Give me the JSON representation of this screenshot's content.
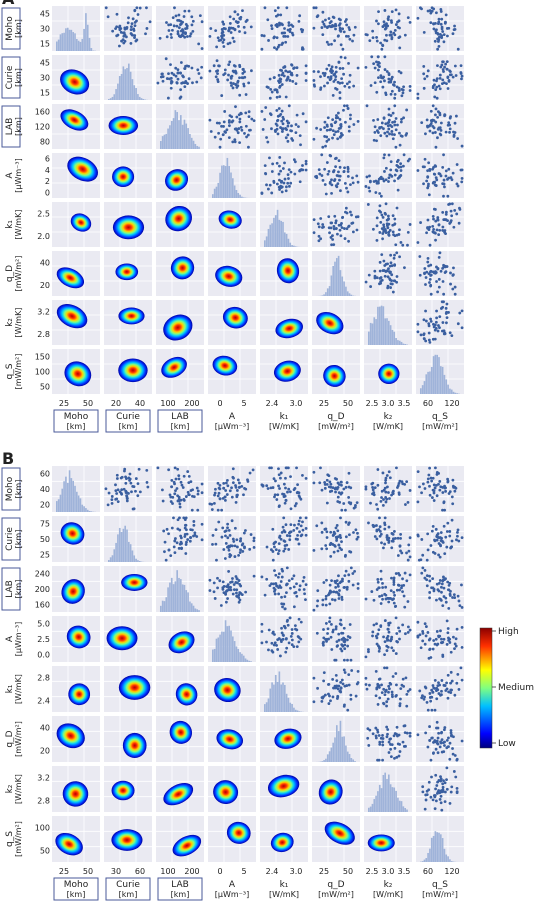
{
  "panels": {
    "A": {
      "label": "A",
      "variables": [
        {
          "name": "Moho",
          "unit": "[km]",
          "ticks": [
            "15",
            "30",
            "45"
          ],
          "xticks": [
            "25",
            "50"
          ]
        },
        {
          "name": "Curie",
          "unit": "[km]",
          "ticks": [
            "15",
            "30",
            "45"
          ],
          "xticks": [
            "20",
            "40"
          ]
        },
        {
          "name": "LAB",
          "unit": "[km]",
          "ticks": [
            "80",
            "120",
            "160"
          ],
          "xticks": [
            "100",
            "200"
          ]
        },
        {
          "name": "A",
          "unit": "[μWm⁻³]",
          "ticks": [
            "0",
            "2",
            "4",
            "6"
          ],
          "xticks": [
            "0",
            "5"
          ]
        },
        {
          "name": "k₁",
          "unit": "[W/mK]",
          "ticks": [
            "2.0",
            "2.5"
          ],
          "xticks": [
            "2.4",
            "3.0"
          ]
        },
        {
          "name": "q_D",
          "unit": "[mW/m²]",
          "ticks": [
            "20",
            "40"
          ],
          "xticks": [
            "25",
            "50"
          ]
        },
        {
          "name": "k₂",
          "unit": "[W/mK]",
          "ticks": [
            "2.8",
            "3.2"
          ],
          "xticks": [
            "2.5",
            "3.0",
            "3.5"
          ]
        },
        {
          "name": "q_S",
          "unit": "[mW/m²]",
          "ticks": [
            "50",
            "100",
            "150"
          ],
          "xticks": [
            "60",
            "120"
          ]
        }
      ]
    },
    "B": {
      "label": "B",
      "variables": [
        {
          "name": "Moho",
          "unit": "[km]",
          "ticks": [
            "20",
            "40",
            "60"
          ],
          "xticks": [
            "25",
            "50"
          ]
        },
        {
          "name": "Curie",
          "unit": "[km]",
          "ticks": [
            "25",
            "50",
            "75"
          ],
          "xticks": [
            "30",
            "60"
          ]
        },
        {
          "name": "LAB",
          "unit": "[km]",
          "ticks": [
            "160",
            "200",
            "240"
          ],
          "xticks": [
            "100",
            "200"
          ]
        },
        {
          "name": "A",
          "unit": "[μWm⁻³]",
          "ticks": [
            "0.0",
            "2.5",
            "5.0"
          ],
          "xticks": [
            "0",
            "5"
          ]
        },
        {
          "name": "k₁",
          "unit": "[W/mK]",
          "ticks": [
            "2.4",
            "2.8"
          ],
          "xticks": [
            "2.4",
            "3.0"
          ]
        },
        {
          "name": "q_D",
          "unit": "[mW/m²]",
          "ticks": [
            "20",
            "40"
          ],
          "xticks": [
            "25",
            "50"
          ]
        },
        {
          "name": "k₂",
          "unit": "[W/mK]",
          "ticks": [
            "2.8",
            "3.2"
          ],
          "xticks": [
            "2.5",
            "3.0",
            "3.5"
          ]
        },
        {
          "name": "q_S",
          "unit": "[mW/m²]",
          "ticks": [
            "50",
            "100"
          ],
          "xticks": [
            "60",
            "120"
          ]
        }
      ]
    }
  },
  "colorbar": {
    "labels": [
      "High",
      "Medium",
      "Low"
    ],
    "colors": [
      "#00007f",
      "#0000ff",
      "#0080ff",
      "#00ffff",
      "#80ff80",
      "#ffff00",
      "#ff8000",
      "#ff0000",
      "#7f0000"
    ]
  },
  "theme": {
    "panel_bg": "#eaeaf2",
    "hist_color": "#9fb3d9",
    "scatter_color": "#3a5fa0",
    "box_border": "#4a5a9a"
  },
  "chart_data": {
    "type": "scatter",
    "layout": "pair-plot",
    "lower_triangle": "kernel density",
    "diagonal": "histogram",
    "upper_triangle": "scatter",
    "panels": [
      "A",
      "B"
    ]
  }
}
